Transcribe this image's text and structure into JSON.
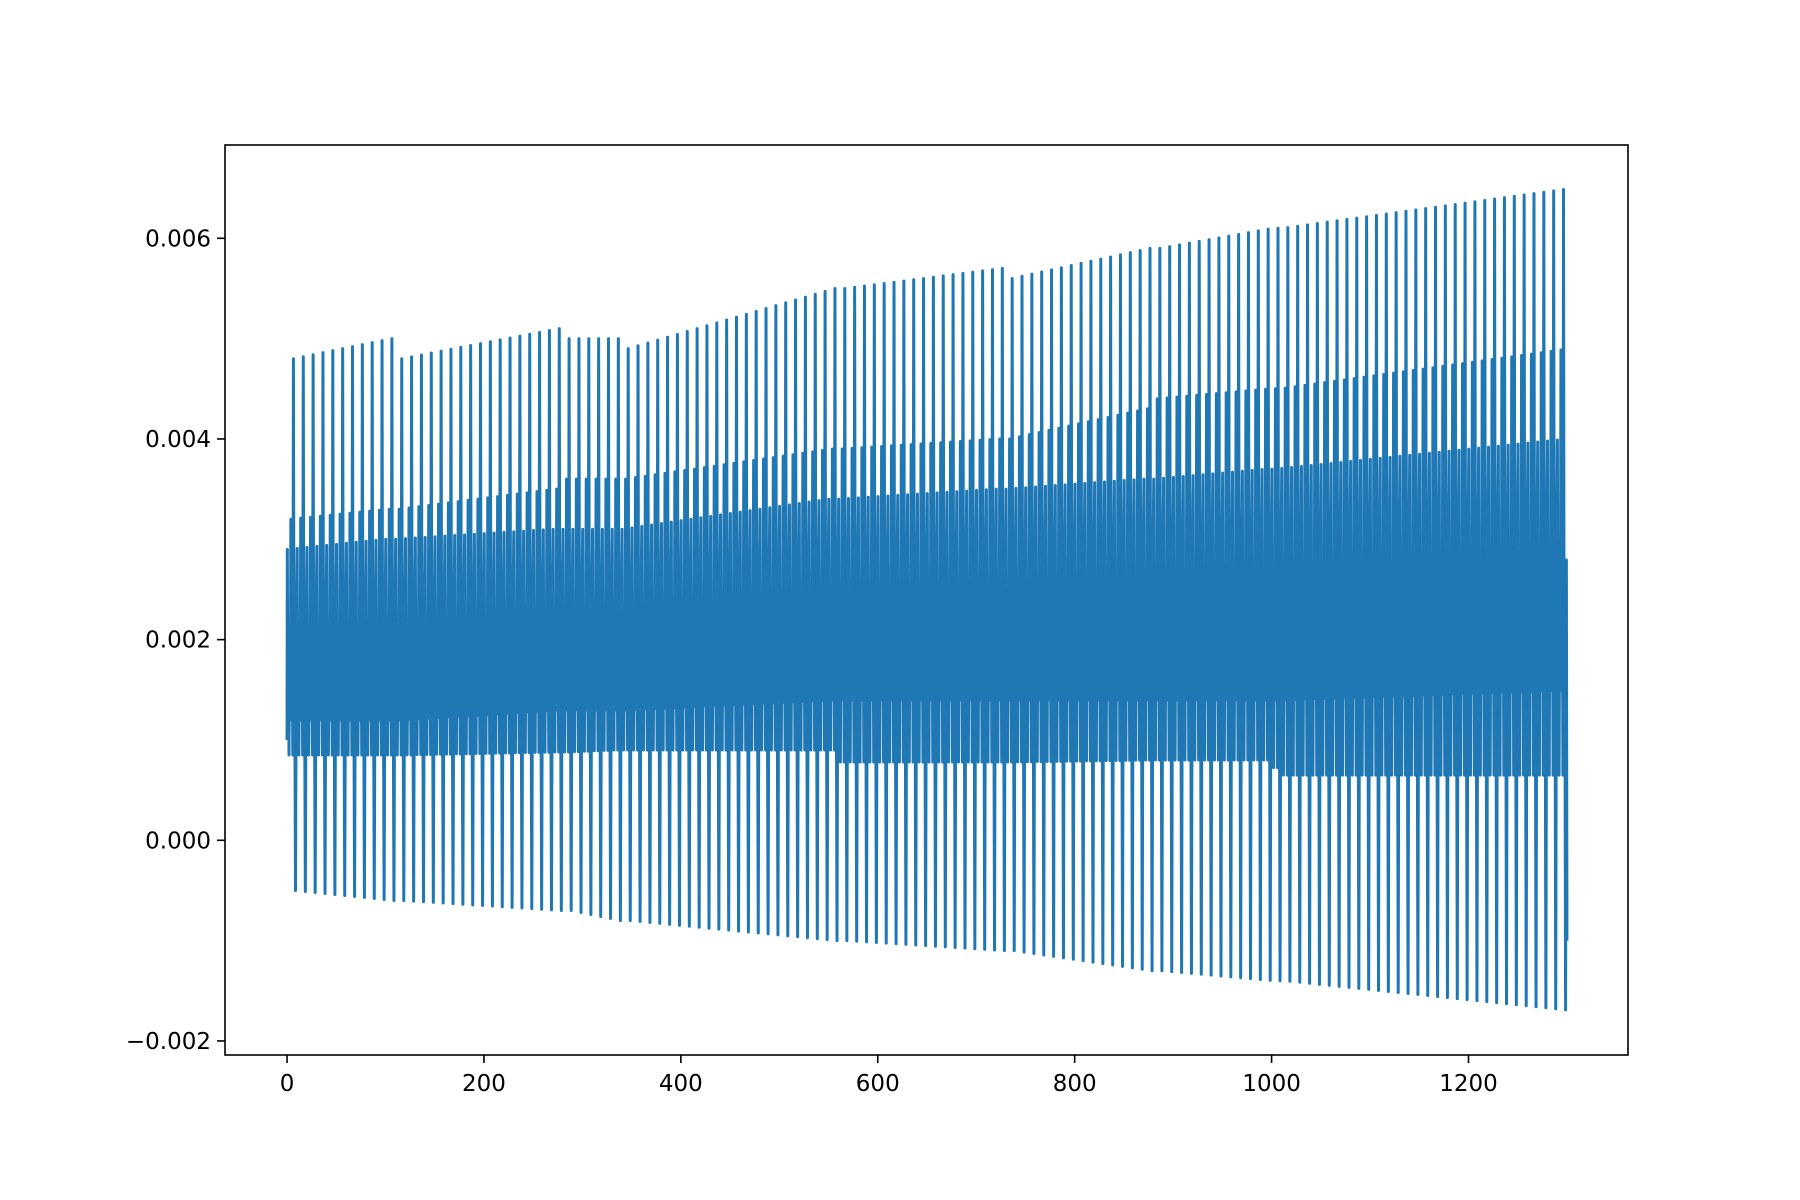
{
  "chart_data": {
    "type": "line",
    "title": "",
    "xlabel": "",
    "ylabel": "",
    "xlim": [
      -63,
      1362
    ],
    "ylim": [
      -0.00214,
      0.00693
    ],
    "grid": false,
    "x_ticks": [
      {
        "value": 0,
        "label": "0"
      },
      {
        "value": 200,
        "label": "200"
      },
      {
        "value": 400,
        "label": "400"
      },
      {
        "value": 600,
        "label": "600"
      },
      {
        "value": 800,
        "label": "800"
      },
      {
        "value": 1000,
        "label": "1000"
      },
      {
        "value": 1200,
        "label": "1200"
      }
    ],
    "y_ticks": [
      {
        "value": -0.002,
        "label": "−0.002"
      },
      {
        "value": 0.0,
        "label": "0.000"
      },
      {
        "value": 0.002,
        "label": "0.002"
      },
      {
        "value": 0.004,
        "label": "0.004"
      },
      {
        "value": 0.006,
        "label": "0.006"
      }
    ],
    "series": [
      {
        "color": "#1f77b4",
        "cycle_length": 10,
        "x_end": 1300,
        "start_value": 0.001,
        "end_value": -0.001,
        "envelope": [
          {
            "x": 0,
            "top_peak": 0.0048,
            "upper_peak": 0.0032,
            "mid_peak": 0.0029,
            "band_high": 0.002,
            "band_low": 0.0012,
            "lower_trough": 0.00085,
            "bottom_trough": -0.0005
          },
          {
            "x": 100,
            "top_peak": 0.005,
            "upper_peak": 0.0033,
            "mid_peak": 0.003,
            "band_high": 0.002,
            "band_low": 0.0012,
            "lower_trough": 0.00085,
            "bottom_trough": -0.0006
          },
          {
            "x": 110,
            "top_peak": 0.0048,
            "upper_peak": 0.0033,
            "mid_peak": 0.003,
            "band_high": 0.002,
            "band_low": 0.0012,
            "lower_trough": 0.00085,
            "bottom_trough": -0.0006
          },
          {
            "x": 270,
            "top_peak": 0.0051,
            "upper_peak": 0.0035,
            "mid_peak": 0.0031,
            "band_high": 0.0022,
            "band_low": 0.0013,
            "lower_trough": 0.00088,
            "bottom_trough": -0.0007
          },
          {
            "x": 280,
            "top_peak": 0.005,
            "upper_peak": 0.0036,
            "mid_peak": 0.0031,
            "band_high": 0.0022,
            "band_low": 0.0013,
            "lower_trough": 0.00088,
            "bottom_trough": -0.0007
          },
          {
            "x": 330,
            "top_peak": 0.005,
            "upper_peak": 0.0036,
            "mid_peak": 0.0031,
            "band_high": 0.0022,
            "band_low": 0.0013,
            "lower_trough": 0.0009,
            "bottom_trough": -0.0008
          },
          {
            "x": 340,
            "top_peak": 0.0049,
            "upper_peak": 0.0036,
            "mid_peak": 0.0031,
            "band_high": 0.0022,
            "band_low": 0.0013,
            "lower_trough": 0.0009,
            "bottom_trough": -0.0008
          },
          {
            "x": 550,
            "top_peak": 0.0055,
            "upper_peak": 0.0039,
            "mid_peak": 0.0034,
            "band_high": 0.0024,
            "band_low": 0.0014,
            "lower_trough": 0.0009,
            "bottom_trough": -0.001
          },
          {
            "x": 560,
            "top_peak": 0.0055,
            "upper_peak": 0.0039,
            "mid_peak": 0.0034,
            "band_high": 0.0024,
            "band_low": 0.0014,
            "lower_trough": 0.00078,
            "bottom_trough": -0.001
          },
          {
            "x": 720,
            "top_peak": 0.0057,
            "upper_peak": 0.004,
            "mid_peak": 0.0035,
            "band_high": 0.0025,
            "band_low": 0.0014,
            "lower_trough": 0.00078,
            "bottom_trough": -0.0011
          },
          {
            "x": 730,
            "top_peak": 0.0056,
            "upper_peak": 0.004,
            "mid_peak": 0.0035,
            "band_high": 0.0025,
            "band_low": 0.0014,
            "lower_trough": 0.00078,
            "bottom_trough": -0.0011
          },
          {
            "x": 870,
            "top_peak": 0.0059,
            "upper_peak": 0.0043,
            "mid_peak": 0.0036,
            "band_high": 0.0026,
            "band_low": 0.0014,
            "lower_trough": 0.0008,
            "bottom_trough": -0.0013
          },
          {
            "x": 880,
            "top_peak": 0.0059,
            "upper_peak": 0.0044,
            "mid_peak": 0.0036,
            "band_high": 0.0026,
            "band_low": 0.0014,
            "lower_trough": 0.0008,
            "bottom_trough": -0.0013
          },
          {
            "x": 995,
            "top_peak": 0.0061,
            "upper_peak": 0.0045,
            "mid_peak": 0.0037,
            "band_high": 0.0026,
            "band_low": 0.0014,
            "lower_trough": 0.0008,
            "bottom_trough": -0.0014
          },
          {
            "x": 1005,
            "top_peak": 0.0061,
            "upper_peak": 0.0045,
            "mid_peak": 0.0037,
            "band_high": 0.0026,
            "band_low": 0.0014,
            "lower_trough": 0.00065,
            "bottom_trough": -0.0014
          },
          {
            "x": 1300,
            "top_peak": 0.0065,
            "upper_peak": 0.0049,
            "mid_peak": 0.004,
            "band_high": 0.0028,
            "band_low": 0.0015,
            "lower_trough": 0.00065,
            "bottom_trough": -0.0017
          }
        ]
      }
    ]
  }
}
